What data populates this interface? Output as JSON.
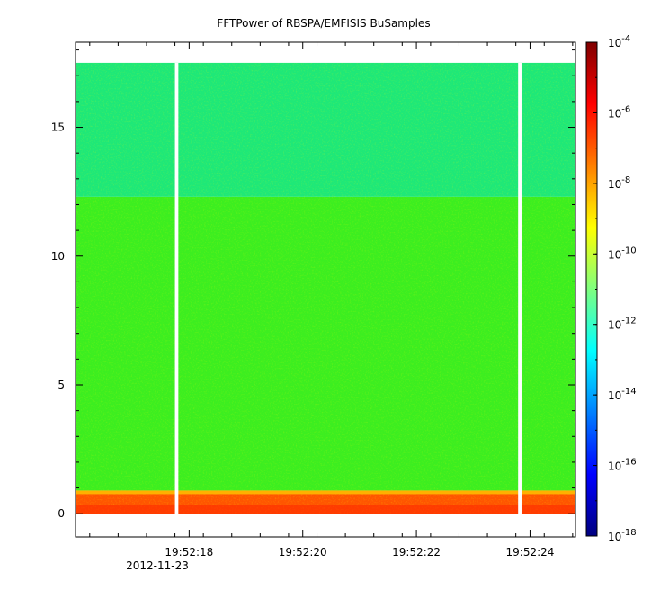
{
  "chart_data": {
    "type": "heatmap",
    "title": "FFTPower of RBSPA/EMFISIS  BuSamples",
    "xlabel": "",
    "ylabel": "",
    "x_tick_labels": [
      "19:52:18",
      "19:52:20",
      "19:52:22",
      "19:52:24"
    ],
    "x_tick_values_seconds": [
      18,
      20,
      22,
      24
    ],
    "x_date_label": "2012-11-23",
    "xlim_seconds": [
      16.0,
      24.8
    ],
    "y_tick_labels": [
      "0",
      "5",
      "10",
      "15"
    ],
    "y_tick_values": [
      0,
      5,
      10,
      15
    ],
    "ylim": [
      -0.9,
      18.3
    ],
    "data_ylim": [
      0,
      17.5
    ],
    "data_gaps_seconds": [
      [
        17.75,
        17.81
      ],
      [
        23.79,
        23.85
      ]
    ],
    "colorbar": {
      "scale": "log",
      "range": [
        1e-18,
        0.0001
      ],
      "tick_exponents": [
        -4,
        -6,
        -8,
        -10,
        -12,
        -14,
        -16,
        -18
      ],
      "tick_base": "10"
    },
    "bands": [
      {
        "y_range": [
          0,
          0.9
        ],
        "level": "1e-7 to 1e-6"
      },
      {
        "y_range": [
          0.9,
          12.3
        ],
        "level": "1e-10"
      },
      {
        "y_range": [
          12.3,
          17.5
        ],
        "level": "1e-11"
      }
    ],
    "colormap": [
      "#00007f",
      "#0000ff",
      "#007fff",
      "#00ffff",
      "#7fff7f",
      "#ffff00",
      "#ff7f00",
      "#ff0000",
      "#7f0000"
    ]
  }
}
